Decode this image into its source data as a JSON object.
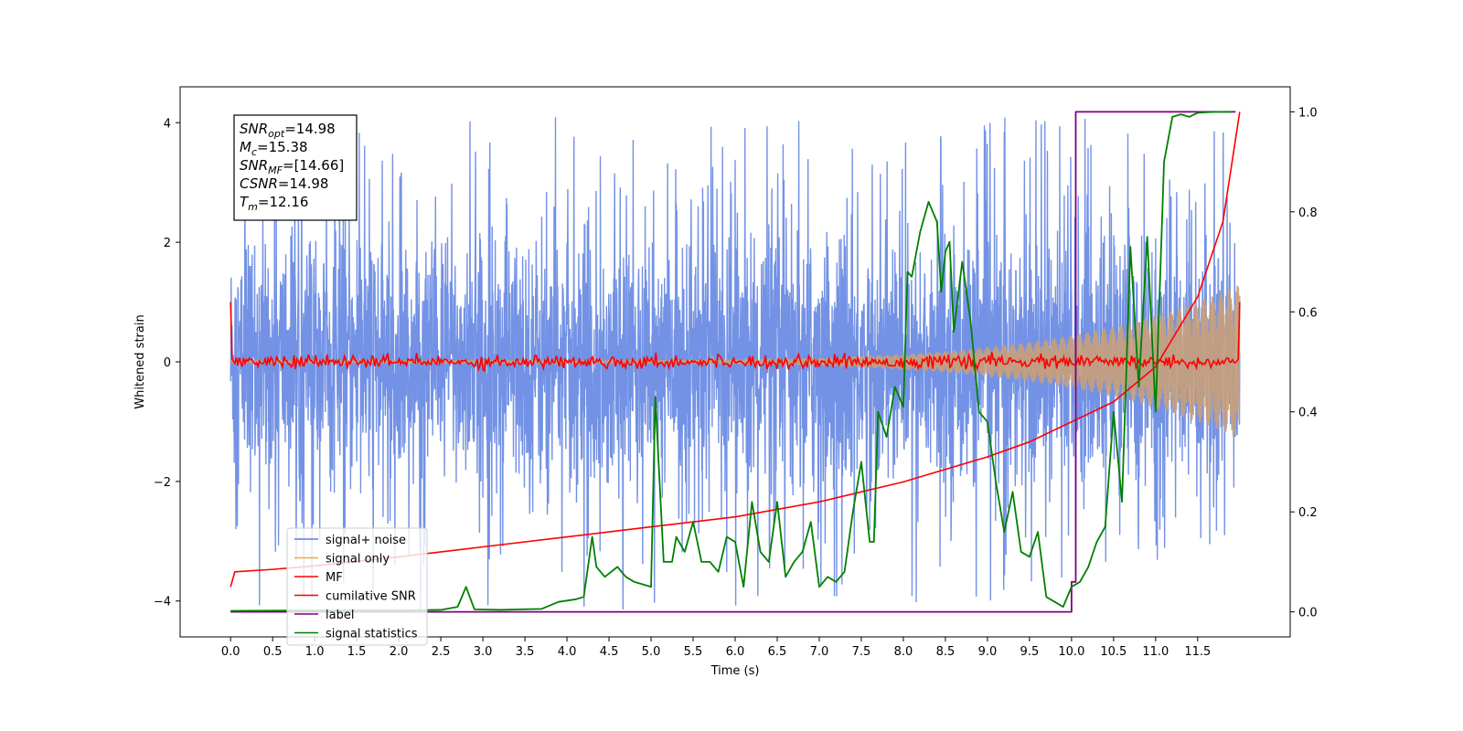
{
  "chart_data": {
    "type": "line",
    "xlabel": "Time (s)",
    "ylabel_left": "Whitened strain",
    "ylabel_right": "",
    "x_ticks": [
      "0.0",
      "0.5",
      "1.0",
      "1.5",
      "2.0",
      "2.5",
      "3.0",
      "3.5",
      "4.0",
      "4.5",
      "5.0",
      "5.5",
      "6.0",
      "6.5",
      "7.0",
      "7.5",
      "8.0",
      "8.5",
      "9.0",
      "9.5",
      "10.0",
      "10.5",
      "11.0",
      "11.5"
    ],
    "x_tick_values": [
      0,
      0.5,
      1,
      1.5,
      2,
      2.5,
      3,
      3.5,
      4,
      4.5,
      5,
      5.5,
      6,
      6.5,
      7,
      7.5,
      8,
      8.5,
      9,
      9.5,
      10,
      10.5,
      11,
      11.5
    ],
    "y_left_ticks": [
      "−4",
      "−2",
      "0",
      "2",
      "4"
    ],
    "y_left_tick_values": [
      -4,
      -2,
      0,
      2,
      4
    ],
    "y_right_ticks": [
      "0.0",
      "0.2",
      "0.4",
      "0.6",
      "0.8",
      "1.0"
    ],
    "y_right_tick_values": [
      0,
      0.2,
      0.4,
      0.6,
      0.8,
      1.0
    ],
    "xlim": [
      -0.6,
      12.6
    ],
    "ylim_left": [
      -4.6,
      4.6
    ],
    "ylim_right": [
      -0.05,
      1.05
    ],
    "time_span": [
      0,
      12.0
    ],
    "grid": false,
    "legend_position": "lower-left",
    "annotation": {
      "lines": [
        {
          "sym": "SNR",
          "sub": "opt",
          "value": "=14.98"
        },
        {
          "sym": "M",
          "sub": "c",
          "value": "=15.38"
        },
        {
          "sym": "SNR",
          "sub": "MF",
          "value": "=[14.66]"
        },
        {
          "sym": "CSNR",
          "sub": "",
          "value": "=14.98"
        },
        {
          "sym": "T",
          "sub": "m",
          "value": "=12.16"
        }
      ]
    },
    "series": [
      {
        "name": "signal+ noise",
        "color": "#5b7fe0",
        "axis": "left",
        "kind": "noise",
        "envelope_start": 2.4,
        "envelope_end": 2.7,
        "spike_max": 4.15
      },
      {
        "name": "signal only",
        "color": "#f7a830",
        "axis": "left",
        "kind": "chirp",
        "amp_start": 0.02,
        "amp_end": 1.3,
        "overlap_color": "#c8a07a"
      },
      {
        "name": "MF",
        "color": "#ff0000",
        "axis": "left",
        "kind": "noise-small",
        "amp": 0.12,
        "start": 1.0,
        "end": 1.0
      },
      {
        "name": "cumilative SNR",
        "color": "#ff0000",
        "axis": "right",
        "x": [
          0,
          0.05,
          0.5,
          1,
          2,
          3,
          4,
          5,
          6,
          6.5,
          7,
          7.5,
          8,
          8.5,
          9,
          9.5,
          10,
          10.5,
          11,
          11.5,
          11.8,
          12.0
        ],
        "y": [
          0.05,
          0.08,
          0.085,
          0.092,
          0.11,
          0.13,
          0.15,
          0.17,
          0.19,
          0.205,
          0.22,
          0.24,
          0.26,
          0.285,
          0.31,
          0.34,
          0.38,
          0.42,
          0.49,
          0.63,
          0.78,
          1.0
        ]
      },
      {
        "name": "label",
        "color": "#800080",
        "axis": "right",
        "x": [
          0,
          10.0,
          10.0,
          10.05,
          10.05,
          11.95
        ],
        "y": [
          0,
          0,
          0.06,
          0.06,
          1.0,
          1.0
        ]
      },
      {
        "name": "signal statistics",
        "color": "#008000",
        "axis": "right",
        "x": [
          0,
          1,
          2,
          2.5,
          2.7,
          2.8,
          2.9,
          3.2,
          3.7,
          3.9,
          4.1,
          4.2,
          4.3,
          4.35,
          4.45,
          4.6,
          4.7,
          4.8,
          5.0,
          5.05,
          5.15,
          5.25,
          5.3,
          5.4,
          5.5,
          5.6,
          5.7,
          5.8,
          5.9,
          6.0,
          6.1,
          6.2,
          6.3,
          6.4,
          6.5,
          6.6,
          6.7,
          6.8,
          6.9,
          7.0,
          7.1,
          7.2,
          7.3,
          7.4,
          7.5,
          7.6,
          7.65,
          7.7,
          7.8,
          7.9,
          8.0,
          8.05,
          8.1,
          8.2,
          8.3,
          8.4,
          8.45,
          8.5,
          8.55,
          8.6,
          8.7,
          8.8,
          8.9,
          9.0,
          9.1,
          9.2,
          9.3,
          9.4,
          9.5,
          9.6,
          9.7,
          9.8,
          9.9,
          10.0,
          10.1,
          10.2,
          10.3,
          10.4,
          10.5,
          10.6,
          10.7,
          10.8,
          10.9,
          11.0,
          11.1,
          11.2,
          11.3,
          11.4,
          11.5,
          11.7,
          11.9
        ],
        "y": [
          0.002,
          0.003,
          0.003,
          0.004,
          0.01,
          0.05,
          0.005,
          0.004,
          0.006,
          0.02,
          0.025,
          0.03,
          0.15,
          0.09,
          0.07,
          0.09,
          0.07,
          0.06,
          0.05,
          0.43,
          0.1,
          0.1,
          0.15,
          0.12,
          0.18,
          0.1,
          0.1,
          0.08,
          0.15,
          0.14,
          0.05,
          0.22,
          0.12,
          0.1,
          0.22,
          0.07,
          0.1,
          0.12,
          0.18,
          0.05,
          0.07,
          0.06,
          0.08,
          0.2,
          0.3,
          0.14,
          0.14,
          0.4,
          0.35,
          0.45,
          0.41,
          0.68,
          0.67,
          0.76,
          0.82,
          0.78,
          0.64,
          0.72,
          0.74,
          0.56,
          0.7,
          0.58,
          0.4,
          0.38,
          0.26,
          0.16,
          0.24,
          0.12,
          0.11,
          0.16,
          0.03,
          0.02,
          0.01,
          0.05,
          0.06,
          0.09,
          0.14,
          0.17,
          0.4,
          0.22,
          0.73,
          0.45,
          0.75,
          0.4,
          0.9,
          0.99,
          0.995,
          0.99,
          0.998,
          1.0,
          1.0
        ]
      }
    ]
  }
}
